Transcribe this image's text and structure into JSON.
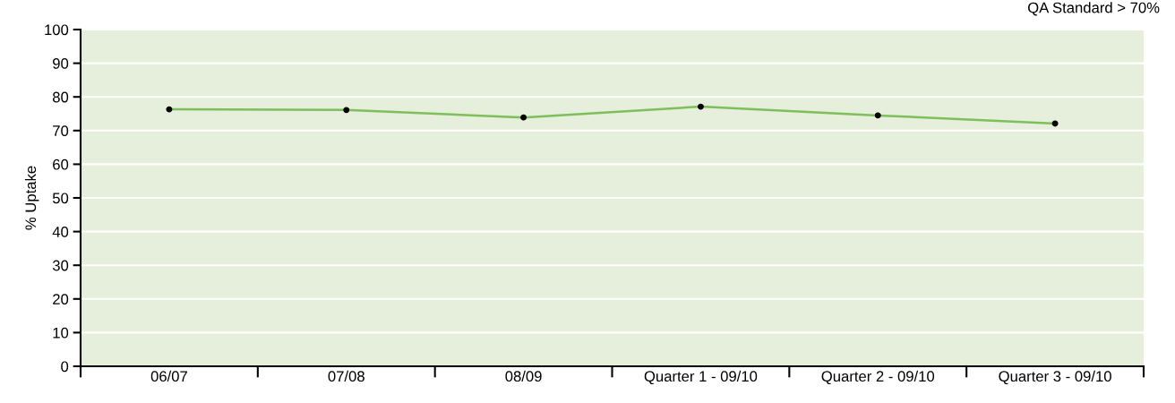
{
  "chart_data": {
    "type": "line",
    "ylabel": "% Uptake",
    "annotations": [
      "QA Standard > 70%"
    ],
    "categories": [
      "06/07",
      "07/08",
      "08/09",
      "Quarter 1 - 09/10",
      "Quarter 2 - 09/10",
      "Quarter 3 - 09/10"
    ],
    "series": [
      {
        "color": "#7dbf5a",
        "values": [
          76.3,
          76.1,
          73.9,
          77.1,
          74.5,
          72.1
        ]
      }
    ],
    "ylim": [
      0,
      100
    ],
    "yticks": [
      0,
      10,
      20,
      30,
      40,
      50,
      60,
      70,
      80,
      90,
      100
    ],
    "grid": "y",
    "marker": "circle",
    "line_style": "solid",
    "legend": false
  }
}
